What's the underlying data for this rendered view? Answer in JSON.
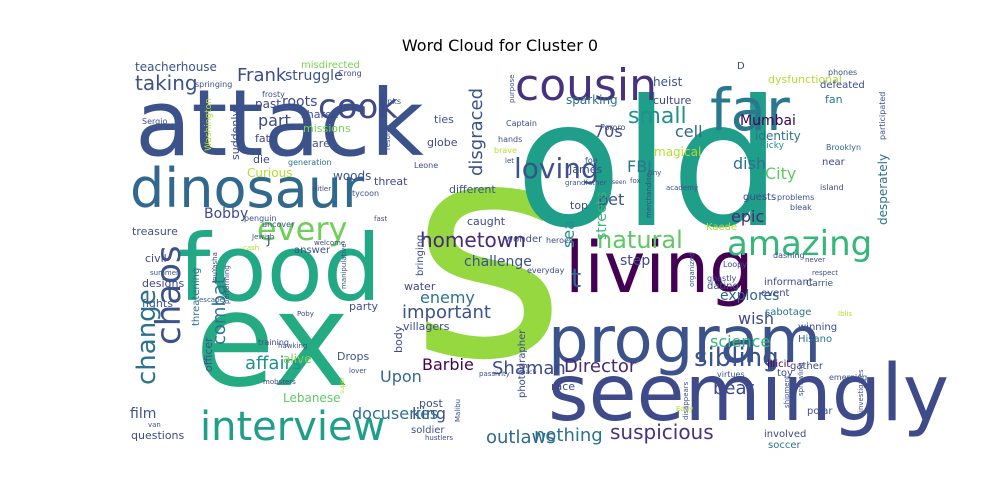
{
  "chart_data": {
    "type": "wordcloud",
    "title": "Word Cloud for Cluster 0",
    "words": [
      {
        "text": "s",
        "weight": 100,
        "color": "#95d840"
      },
      {
        "text": "old",
        "weight": 85,
        "color": "#1f9e89"
      },
      {
        "text": "ex",
        "weight": 72,
        "color": "#25ab82"
      },
      {
        "text": "attack",
        "weight": 58,
        "color": "#3b528b"
      },
      {
        "text": "food",
        "weight": 55,
        "color": "#22a884"
      },
      {
        "text": "living",
        "weight": 52,
        "color": "#440154"
      },
      {
        "text": "seemingly",
        "weight": 48,
        "color": "#3e4a89"
      },
      {
        "text": "program",
        "weight": 45,
        "color": "#3b528b"
      },
      {
        "text": "far",
        "weight": 40,
        "color": "#2a788e"
      },
      {
        "text": "dinosaur",
        "weight": 38,
        "color": "#31688e"
      },
      {
        "text": "cousin",
        "weight": 30,
        "color": "#46327e"
      },
      {
        "text": "interview",
        "weight": 28,
        "color": "#1f9e89"
      },
      {
        "text": "cook",
        "weight": 27,
        "color": "#3e4a89"
      },
      {
        "text": "amazing",
        "weight": 25,
        "color": "#35b779"
      },
      {
        "text": "chaos",
        "weight": 22,
        "color": "#3b528b"
      },
      {
        "text": "change",
        "weight": 21,
        "color": "#2c728e"
      },
      {
        "text": "every",
        "weight": 20,
        "color": "#6ece58"
      },
      {
        "text": "loving",
        "weight": 20,
        "color": "#3b528b"
      },
      {
        "text": "sibling",
        "weight": 19,
        "color": "#3b528b"
      },
      {
        "text": "natural",
        "weight": 18,
        "color": "#5ec962"
      },
      {
        "text": "t",
        "weight": 17,
        "color": "#31688e"
      },
      {
        "text": "hometown",
        "weight": 15,
        "color": "#482878"
      },
      {
        "text": "taking",
        "weight": 15,
        "color": "#3b528b"
      },
      {
        "text": "Frank",
        "weight": 15,
        "color": "#3e4a89"
      },
      {
        "text": "small",
        "weight": 15,
        "color": "#21918c"
      },
      {
        "text": "disgraced",
        "weight": 14,
        "color": "#3b528b"
      },
      {
        "text": "suspicious",
        "weight": 14,
        "color": "#46327e"
      },
      {
        "text": "outlaws",
        "weight": 13,
        "color": "#31688e"
      },
      {
        "text": "nothing",
        "weight": 13,
        "color": "#2c728e"
      },
      {
        "text": "combat",
        "weight": 13,
        "color": "#2a788e"
      },
      {
        "text": "affairs",
        "weight": 13,
        "color": "#21918c"
      },
      {
        "text": "Shaman",
        "weight": 13,
        "color": "#3e4a89"
      },
      {
        "text": "Director",
        "weight": 13,
        "color": "#482878"
      },
      {
        "text": "important",
        "weight": 13,
        "color": "#3b528b"
      },
      {
        "text": "enemy",
        "weight": 12,
        "color": "#2c728e"
      },
      {
        "text": "part",
        "weight": 13,
        "color": "#3e4a89"
      },
      {
        "text": "science",
        "weight": 12,
        "color": "#35b779"
      },
      {
        "text": "bear",
        "weight": 12,
        "color": "#3e4a89"
      },
      {
        "text": "king",
        "weight": 12,
        "color": "#3b528b"
      },
      {
        "text": "Upon",
        "weight": 12,
        "color": "#31688e"
      },
      {
        "text": "Barbie",
        "weight": 12,
        "color": "#440154"
      },
      {
        "text": "docuseries",
        "weight": 11,
        "color": "#2c728e"
      },
      {
        "text": "wish",
        "weight": 12,
        "color": "#3e4a89"
      },
      {
        "text": "explores",
        "weight": 11,
        "color": "#31688e"
      },
      {
        "text": "epic",
        "weight": 12,
        "color": "#482878"
      },
      {
        "text": "City",
        "weight": 12,
        "color": "#5ec962"
      },
      {
        "text": "dish",
        "weight": 12,
        "color": "#2c728e"
      },
      {
        "text": "cell",
        "weight": 12,
        "color": "#31688e"
      },
      {
        "text": "Mumbai",
        "weight": 11,
        "color": "#440154"
      },
      {
        "text": "FBI",
        "weight": 12,
        "color": "#2a788e"
      },
      {
        "text": "pet",
        "weight": 12,
        "color": "#3b528b"
      },
      {
        "text": "70s",
        "weight": 12,
        "color": "#3e4a89"
      },
      {
        "text": "sea",
        "weight": 11,
        "color": "#21918c"
      },
      {
        "text": "streets",
        "weight": 11,
        "color": "#35b779"
      },
      {
        "text": "step",
        "weight": 11,
        "color": "#3e4a89"
      },
      {
        "text": "challenge",
        "weight": 10,
        "color": "#3b528b"
      },
      {
        "text": "Bobby",
        "weight": 11,
        "color": "#3e4a89"
      },
      {
        "text": "roots",
        "weight": 11,
        "color": "#3e4a89"
      },
      {
        "text": "struggle",
        "weight": 10,
        "color": "#3b528b"
      },
      {
        "text": "film",
        "weight": 10,
        "color": "#3b528b"
      },
      {
        "text": "alive",
        "weight": 9,
        "color": "#7ad151"
      },
      {
        "text": "identity",
        "weight": 9,
        "color": "#2c728e"
      },
      {
        "text": "magical",
        "weight": 9,
        "color": "#b5de2b"
      },
      {
        "text": "sparking",
        "weight": 8,
        "color": "#2c728e"
      },
      {
        "text": "heist",
        "weight": 8,
        "color": "#3b528b"
      },
      {
        "text": "culture",
        "weight": 7,
        "color": "#3e4a89"
      },
      {
        "text": "dysfunctional",
        "weight": 7,
        "color": "#b5de2b"
      },
      {
        "text": "desperately",
        "weight": 8,
        "color": "#2c728e"
      },
      {
        "text": "fan",
        "weight": 7,
        "color": "#2a788e"
      },
      {
        "text": "defeated",
        "weight": 6,
        "color": "#3e4a89"
      },
      {
        "text": "phones",
        "weight": 5,
        "color": "#3b528b"
      },
      {
        "text": "participated",
        "weight": 5,
        "color": "#3b528b"
      },
      {
        "text": "Brooklyn",
        "weight": 5,
        "color": "#31688e"
      },
      {
        "text": "island",
        "weight": 5,
        "color": "#3e4a89"
      },
      {
        "text": "Ricky",
        "weight": 6,
        "color": "#21918c"
      },
      {
        "text": "guests",
        "weight": 7,
        "color": "#3e4a89"
      },
      {
        "text": "problems",
        "weight": 5,
        "color": "#3b528b"
      },
      {
        "text": "bleak",
        "weight": 5,
        "color": "#3b528b"
      },
      {
        "text": "near",
        "weight": 7,
        "color": "#3e4a89"
      },
      {
        "text": "Kaede",
        "weight": 6,
        "color": "#b5de2b"
      },
      {
        "text": "informant",
        "weight": 7,
        "color": "#3e4a89"
      },
      {
        "text": "Carrie",
        "weight": 6,
        "color": "#3b528b"
      },
      {
        "text": "event",
        "weight": 7,
        "color": "#3e4a89"
      },
      {
        "text": "dating",
        "weight": 7,
        "color": "#3b528b"
      },
      {
        "text": "sabotage",
        "weight": 7,
        "color": "#2c728e"
      },
      {
        "text": "dashing",
        "weight": 5,
        "color": "#3b528b"
      },
      {
        "text": "winning",
        "weight": 7,
        "color": "#3e4a89"
      },
      {
        "text": "Hisano",
        "weight": 7,
        "color": "#2c728e"
      },
      {
        "text": "toy",
        "weight": 7,
        "color": "#3e4a89"
      },
      {
        "text": "gather",
        "weight": 7,
        "color": "#3e4a89"
      },
      {
        "text": "illicit",
        "weight": 7,
        "color": "#440154"
      },
      {
        "text": "virtues",
        "weight": 5,
        "color": "#3b528b"
      },
      {
        "text": "Loopy",
        "weight": 5,
        "color": "#3e4a89"
      },
      {
        "text": "ghastly",
        "weight": 5,
        "color": "#3e4a89"
      },
      {
        "text": "organized",
        "weight": 4,
        "color": "#3b528b"
      },
      {
        "text": "polar",
        "weight": 7,
        "color": "#3b528b"
      },
      {
        "text": "involved",
        "weight": 7,
        "color": "#3e4a89"
      },
      {
        "text": "soccer",
        "weight": 7,
        "color": "#2c728e"
      },
      {
        "text": "stitches",
        "weight": 5,
        "color": "#3e4a89"
      },
      {
        "text": "investigates",
        "weight": 4,
        "color": "#3b528b"
      },
      {
        "text": "emerging",
        "weight": 5,
        "color": "#3b528b"
      },
      {
        "text": "shipment",
        "weight": 4,
        "color": "#3b528b"
      },
      {
        "text": "sprawling",
        "weight": 4,
        "color": "#3e4a89"
      },
      {
        "text": "Eddy",
        "weight": 4,
        "color": "#b5de2b"
      },
      {
        "text": "disappears",
        "weight": 4,
        "color": "#3b528b"
      },
      {
        "text": "teacherhouse",
        "weight": 8,
        "color": "#3b528b"
      },
      {
        "text": "misdirected",
        "weight": 6,
        "color": "#7ad151"
      },
      {
        "text": "springing",
        "weight": 5,
        "color": "#3e4a89"
      },
      {
        "text": "frosty",
        "weight": 5,
        "color": "#3b528b"
      },
      {
        "text": "past",
        "weight": 8,
        "color": "#3e4a89"
      },
      {
        "text": "shared",
        "weight": 7,
        "color": "#3b528b"
      },
      {
        "text": "missions",
        "weight": 7,
        "color": "#7ad151"
      },
      {
        "text": "Crong",
        "weight": 5,
        "color": "#3e4a89"
      },
      {
        "text": "ranks",
        "weight": 5,
        "color": "#3b528b"
      },
      {
        "text": "Sergio",
        "weight": 5,
        "color": "#3b528b"
      },
      {
        "text": "Washington",
        "weight": 6,
        "color": "#b5de2b"
      },
      {
        "text": "suddenly",
        "weight": 7,
        "color": "#3e4a89"
      },
      {
        "text": "fate",
        "weight": 7,
        "color": "#3e4a89"
      },
      {
        "text": "care",
        "weight": 7,
        "color": "#3b528b"
      },
      {
        "text": "generation",
        "weight": 5,
        "color": "#2c728e"
      },
      {
        "text": "die",
        "weight": 7,
        "color": "#3e4a89"
      },
      {
        "text": "woods",
        "weight": 8,
        "color": "#3b528b"
      },
      {
        "text": "Curious",
        "weight": 8,
        "color": "#b5de2b"
      },
      {
        "text": "Hitler",
        "weight": 4,
        "color": "#3e4a89"
      },
      {
        "text": "threat",
        "weight": 7,
        "color": "#3e4a89"
      },
      {
        "text": "tycoon",
        "weight": 5,
        "color": "#3b528b"
      },
      {
        "text": "penguin",
        "weight": 5,
        "color": "#3b528b"
      },
      {
        "text": "uncover",
        "weight": 5,
        "color": "#3b528b"
      },
      {
        "text": "fast",
        "weight": 4,
        "color": "#3e4a89"
      },
      {
        "text": "Jewish",
        "weight": 4,
        "color": "#3b528b"
      },
      {
        "text": "cash",
        "weight": 5,
        "color": "#b5de2b"
      },
      {
        "text": "ties",
        "weight": 7,
        "color": "#3b528b"
      },
      {
        "text": "globe",
        "weight": 7,
        "color": "#3e4a89"
      },
      {
        "text": "resolve",
        "weight": 4,
        "color": "#3b528b"
      },
      {
        "text": "Leone",
        "weight": 5,
        "color": "#3e4a89"
      },
      {
        "text": "hands",
        "weight": 5,
        "color": "#3b528b"
      },
      {
        "text": "brave",
        "weight": 5,
        "color": "#b5de2b"
      },
      {
        "text": "let",
        "weight": 4,
        "color": "#3b528b"
      },
      {
        "text": "Captain",
        "weight": 5,
        "color": "#3e4a89"
      },
      {
        "text": "purpose",
        "weight": 4,
        "color": "#3b528b"
      },
      {
        "text": "Pororo",
        "weight": 5,
        "color": "#3e4a89"
      },
      {
        "text": "foe",
        "weight": 5,
        "color": "#3b528b"
      },
      {
        "text": "James",
        "weight": 7,
        "color": "#3e4a89"
      },
      {
        "text": "grandfather",
        "weight": 4,
        "color": "#3b528b"
      },
      {
        "text": "seen",
        "weight": 4,
        "color": "#3e4a89"
      },
      {
        "text": "fox",
        "weight": 4,
        "color": "#3b528b"
      },
      {
        "text": "tiny",
        "weight": 5,
        "color": "#3e4a89"
      },
      {
        "text": "academy",
        "weight": 4,
        "color": "#3b528b"
      },
      {
        "text": "merchandise",
        "weight": 4,
        "color": "#3e4a89"
      },
      {
        "text": "top",
        "weight": 7,
        "color": "#3e4a89"
      },
      {
        "text": "different",
        "weight": 7,
        "color": "#3b528b"
      },
      {
        "text": "caught",
        "weight": 7,
        "color": "#3e4a89"
      },
      {
        "text": "wonder",
        "weight": 6,
        "color": "#3b528b"
      },
      {
        "text": "heroes",
        "weight": 5,
        "color": "#3e4a89"
      },
      {
        "text": "bringing",
        "weight": 6,
        "color": "#3b528b"
      },
      {
        "text": "everyday",
        "weight": 5,
        "color": "#3e4a89"
      },
      {
        "text": "treasure",
        "weight": 8,
        "color": "#3b528b"
      },
      {
        "text": "J",
        "weight": 8,
        "color": "#3e4a89"
      },
      {
        "text": "civil",
        "weight": 7,
        "color": "#3e4a89"
      },
      {
        "text": "answer",
        "weight": 6,
        "color": "#3b528b"
      },
      {
        "text": "welcome",
        "weight": 4,
        "color": "#3e4a89"
      },
      {
        "text": "summer",
        "weight": 5,
        "color": "#3b528b"
      },
      {
        "text": "designs",
        "weight": 7,
        "color": "#3e4a89"
      },
      {
        "text": "fights",
        "weight": 7,
        "color": "#3b528b"
      },
      {
        "text": "threatening",
        "weight": 6,
        "color": "#2c728e"
      },
      {
        "text": "InuYasha",
        "weight": 4,
        "color": "#3e4a89"
      },
      {
        "text": "manipulative",
        "weight": 4,
        "color": "#3b528b"
      },
      {
        "text": "water",
        "weight": 7,
        "color": "#3e4a89"
      },
      {
        "text": "party",
        "weight": 7,
        "color": "#3b528b"
      },
      {
        "text": "Poby",
        "weight": 4,
        "color": "#3e4a89"
      },
      {
        "text": "villagers",
        "weight": 7,
        "color": "#3e4a89"
      },
      {
        "text": "escape",
        "weight": 4,
        "color": "#3b528b"
      },
      {
        "text": "performing",
        "weight": 4,
        "color": "#3e4a89"
      },
      {
        "text": "officer",
        "weight": 7,
        "color": "#3b528b"
      },
      {
        "text": "training",
        "weight": 5,
        "color": "#3e4a89"
      },
      {
        "text": "hawking",
        "weight": 4,
        "color": "#3b528b"
      },
      {
        "text": "body",
        "weight": 7,
        "color": "#3e4a89"
      },
      {
        "text": "Drops",
        "weight": 7,
        "color": "#3b528b"
      },
      {
        "text": "photographer",
        "weight": 6,
        "color": "#3e4a89"
      },
      {
        "text": "passivity",
        "weight": 4,
        "color": "#3b528b"
      },
      {
        "text": "race",
        "weight": 7,
        "color": "#3e4a89"
      },
      {
        "text": "beach",
        "weight": 4,
        "color": "#3b528b"
      },
      {
        "text": "mobsters",
        "weight": 4,
        "color": "#3e4a89"
      },
      {
        "text": "Lebanese",
        "weight": 7,
        "color": "#5ec962"
      },
      {
        "text": "super",
        "weight": 4,
        "color": "#b5de2b"
      },
      {
        "text": "lover",
        "weight": 4,
        "color": "#3b528b"
      },
      {
        "text": "post",
        "weight": 7,
        "color": "#3e4a89"
      },
      {
        "text": "soldier",
        "weight": 6,
        "color": "#3b528b"
      },
      {
        "text": "hustlers",
        "weight": 4,
        "color": "#3e4a89"
      },
      {
        "text": "Malibu",
        "weight": 4,
        "color": "#3b528b"
      },
      {
        "text": "questions",
        "weight": 7,
        "color": "#3e4a89"
      },
      {
        "text": "van",
        "weight": 5,
        "color": "#3b528b"
      },
      {
        "text": "never",
        "weight": 4,
        "color": "#3e4a89"
      },
      {
        "text": "respect",
        "weight": 4,
        "color": "#3b528b"
      },
      {
        "text": "Iblis",
        "weight": 4,
        "color": "#b5de2b"
      },
      {
        "text": "D",
        "weight": 5,
        "color": "#3e4a89"
      }
    ]
  }
}
